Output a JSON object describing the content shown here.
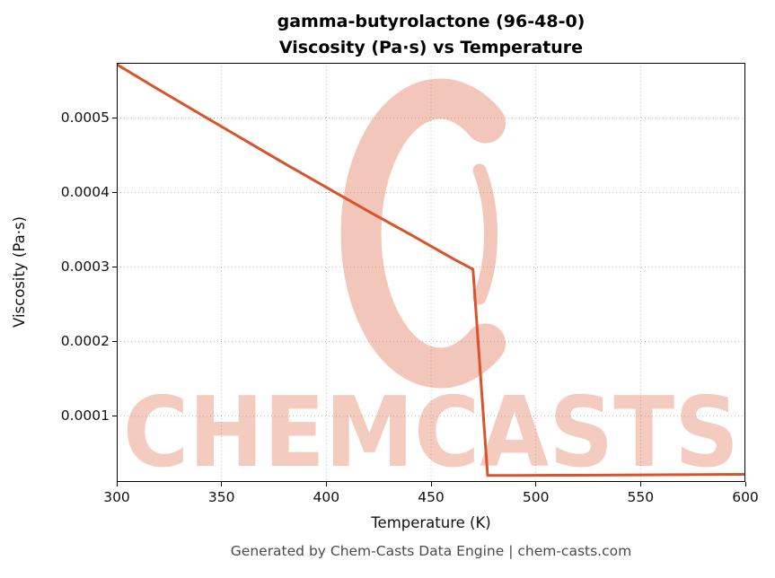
{
  "header": {
    "title_line1": "gamma-butyrolactone (96-48-0)",
    "title_line2": "Viscosity (Pa·s) vs Temperature"
  },
  "footer": {
    "caption": "Generated by Chem-Casts Data Engine | chem-casts.com"
  },
  "watermark": {
    "text": "CHEMCASTS",
    "logo": "chemcasts-c-logo",
    "color": "#d9532b",
    "text_opacity": 0.3,
    "logo_opacity": 0.33
  },
  "chart_data": {
    "type": "line",
    "title": "gamma-butyrolactone (96-48-0) — Viscosity (Pa·s) vs Temperature",
    "xlabel": "Temperature (K)",
    "ylabel": "Viscosity (Pa·s)",
    "xlim": [
      300,
      600
    ],
    "ylim": [
      1.18e-05,
      0.000574
    ],
    "grid": true,
    "grid_style": "dotted",
    "legend": "none",
    "line_color": "#d9532b",
    "line_width": 3,
    "xticks": [
      {
        "v": 300,
        "label": "300"
      },
      {
        "v": 350,
        "label": "350"
      },
      {
        "v": 400,
        "label": "400"
      },
      {
        "v": 450,
        "label": "450"
      },
      {
        "v": 500,
        "label": "500"
      },
      {
        "v": 550,
        "label": "550"
      },
      {
        "v": 600,
        "label": "600"
      }
    ],
    "yticks": [
      {
        "v": 0.0001,
        "label": "0.0001"
      },
      {
        "v": 0.0002,
        "label": "0.0002"
      },
      {
        "v": 0.0003,
        "label": "0.0003"
      },
      {
        "v": 0.0004,
        "label": "0.0004"
      },
      {
        "v": 0.0005,
        "label": "0.0005"
      }
    ],
    "series": [
      {
        "name": "Viscosity (Pa·s)",
        "x": [
          300,
          320,
          340,
          360,
          380,
          400,
          420,
          440,
          460,
          470,
          477,
          490,
          510,
          530,
          550,
          570,
          600
        ],
        "y": [
          0.000572,
          0.000538,
          0.000505,
          0.000472,
          0.000439,
          0.000407,
          0.000375,
          0.000344,
          0.000312,
          0.000297,
          2.05e-05,
          2.06e-05,
          2.08e-05,
          2.1e-05,
          2.13e-05,
          2.16e-05,
          2.2e-05
        ]
      }
    ]
  }
}
